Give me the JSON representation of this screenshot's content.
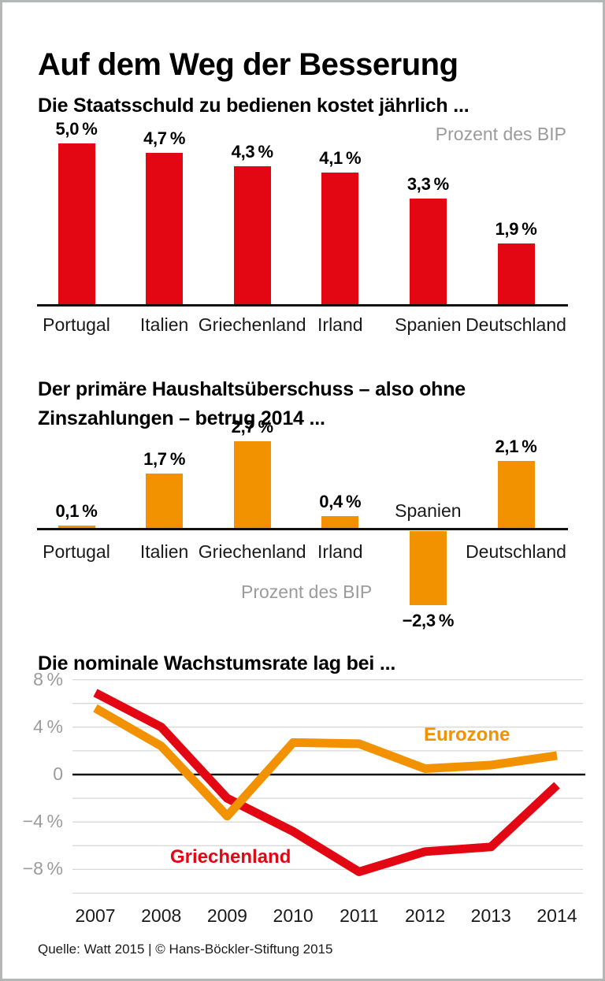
{
  "page": {
    "title": "Auf dem Weg der Besserung",
    "source_line": "Quelle: Watt 2015 | © Hans-Böckler-Stiftung 2015"
  },
  "colors": {
    "red": "#e30613",
    "orange": "#f39200",
    "gray_text": "#9b9b9b",
    "gridline": "#d8d8d8",
    "axis": "#111111"
  },
  "chart_data": [
    {
      "id": "debt-service-cost",
      "type": "bar",
      "title": "Die Staatsschuld zu bedienen kostet jährlich ...",
      "unit_label": "Prozent des BIP",
      "categories": [
        "Portugal",
        "Italien",
        "Griechenland",
        "Irland",
        "Spanien",
        "Deutschland"
      ],
      "values": [
        5.0,
        4.7,
        4.3,
        4.1,
        3.3,
        1.9
      ],
      "value_labels": [
        "5,0 %",
        "4,7 %",
        "4,3 %",
        "4,1 %",
        "3,3 %",
        "1,9 %"
      ],
      "bar_color": "#e30613",
      "ylim": [
        0,
        5.5
      ],
      "grid": false
    },
    {
      "id": "primary-balance-2014",
      "type": "bar",
      "title": "Der primäre Haushaltsüberschuss – also ohne Zinszahlungen – betrug 2014 ...",
      "title_lines": [
        "Der primäre Haushaltsüberschuss – also ohne",
        "Zinszahlungen – betrug 2014 ..."
      ],
      "unit_label": "Prozent des BIP",
      "categories": [
        "Portugal",
        "Italien",
        "Griechenland",
        "Irland",
        "Spanien",
        "Deutschland"
      ],
      "values": [
        0.1,
        1.7,
        2.7,
        0.4,
        -2.3,
        2.1
      ],
      "value_labels": [
        "0,1 %",
        "1,7 %",
        "2,7 %",
        "0,4 %",
        "−2,3 %",
        "2,1 %"
      ],
      "bar_color": "#f39200",
      "ylim": [
        -2.5,
        3
      ],
      "grid": false
    },
    {
      "id": "nominal-growth-rate",
      "type": "line",
      "title": "Die nominale Wachstumsrate lag bei ...",
      "x": [
        2007,
        2008,
        2009,
        2010,
        2011,
        2012,
        2013,
        2014
      ],
      "series": [
        {
          "name": "Griechenland",
          "color": "#e30613",
          "values": [
            6.9,
            4.0,
            -2.0,
            -4.8,
            -8.2,
            -6.5,
            -6.1,
            -0.9
          ]
        },
        {
          "name": "Eurozone",
          "color": "#f39200",
          "values": [
            5.6,
            2.4,
            -3.5,
            2.7,
            2.6,
            0.5,
            0.8,
            1.6
          ]
        }
      ],
      "ylim": [
        -10,
        8
      ],
      "grid_step": 2,
      "ytick_values": [
        8,
        4,
        0,
        -4,
        -8
      ],
      "ytick_labels": [
        "8 %",
        "4 %",
        "0",
        "−4 %",
        "−8 %"
      ],
      "legend_position": "inline-labels",
      "grid": true
    }
  ]
}
